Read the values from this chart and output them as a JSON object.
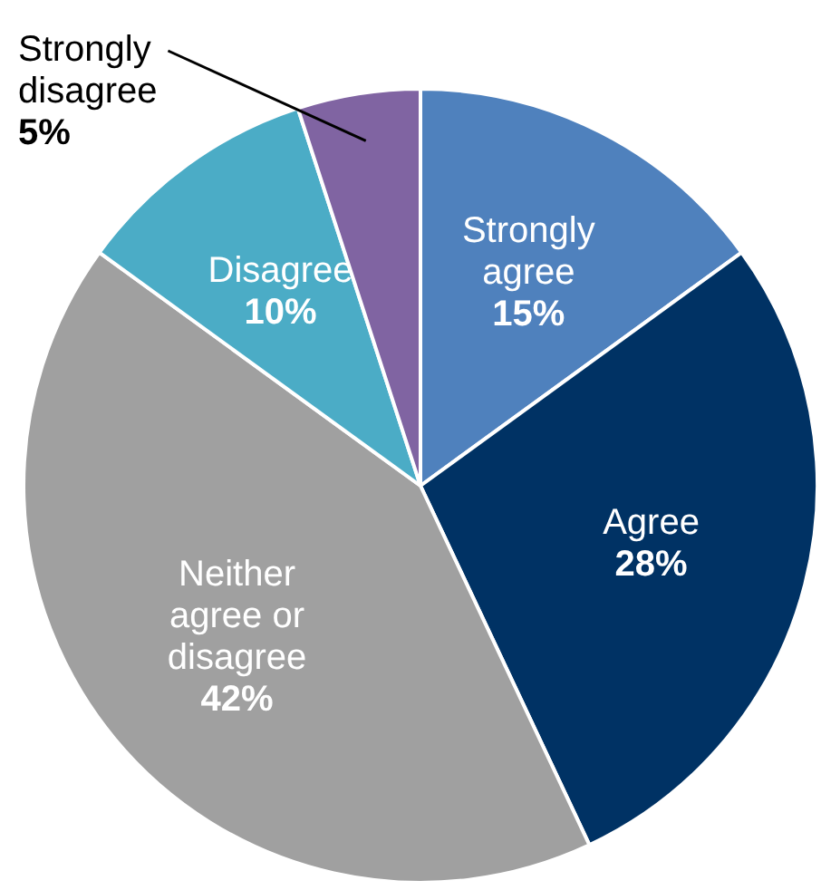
{
  "chart_data": {
    "type": "pie",
    "categories": [
      "Strongly agree",
      "Agree",
      "Neither agree or disagree",
      "Disagree",
      "Strongly disagree"
    ],
    "values": [
      15,
      28,
      42,
      10,
      5
    ],
    "colors": [
      "#4f81bd",
      "#003264",
      "#a0a0a0",
      "#4bacc6",
      "#8064a2"
    ],
    "value_labels": [
      "15%",
      "28%",
      "42%",
      "10%",
      "5%"
    ],
    "legend": false
  }
}
